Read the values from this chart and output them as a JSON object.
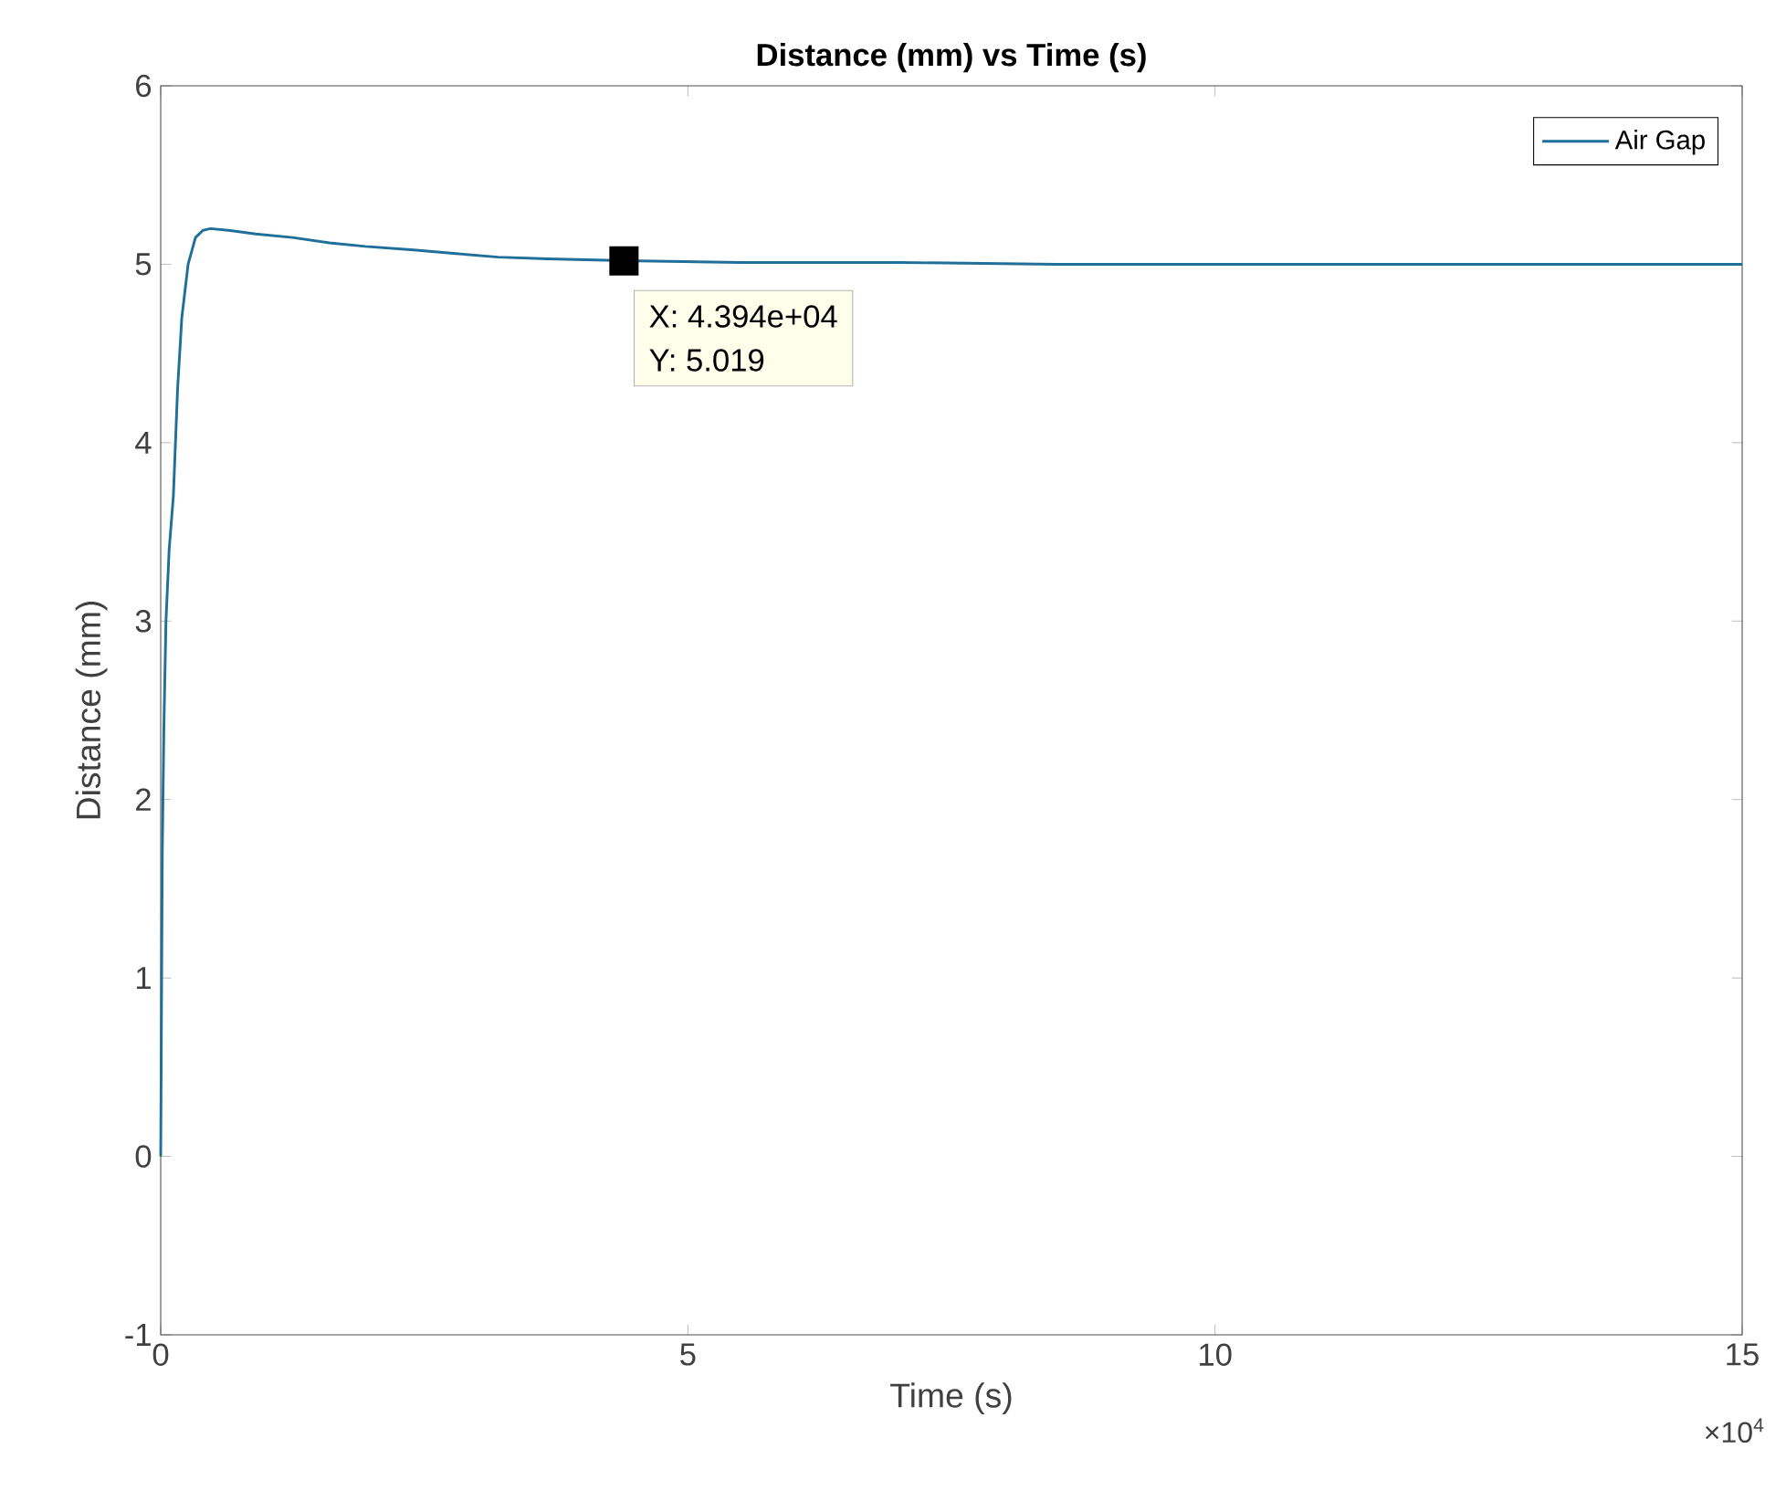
{
  "chart_data": {
    "type": "line",
    "title": "Distance (mm) vs Time (s)",
    "xlabel": "Time (s)",
    "ylabel": "Distance (mm)",
    "x": [
      0,
      0.015,
      0.03,
      0.05,
      0.08,
      0.12,
      0.16,
      0.2,
      0.26,
      0.33,
      0.4,
      0.47,
      0.64,
      0.9,
      1.25,
      1.6,
      1.94,
      2.4,
      2.8,
      3.2,
      3.67,
      4.4,
      5.5,
      7,
      8.5,
      10,
      12,
      13.5,
      15
    ],
    "series": [
      {
        "name": "Air Gap",
        "color": "#1f6f9a",
        "values": [
          0,
          1.7,
          2.4,
          3.0,
          3.4,
          3.7,
          4.3,
          4.7,
          5.0,
          5.15,
          5.19,
          5.2,
          5.19,
          5.17,
          5.15,
          5.12,
          5.1,
          5.08,
          5.06,
          5.04,
          5.03,
          5.02,
          5.01,
          5.01,
          5.0,
          5.0,
          5.0,
          5.0,
          5.0
        ]
      }
    ],
    "xlim": [
      0,
      15
    ],
    "ylim": [
      -1,
      6
    ],
    "xticks": [
      0,
      5,
      10,
      15
    ],
    "yticks": [
      -1,
      0,
      1,
      2,
      3,
      4,
      5,
      6
    ],
    "legend": "top right",
    "grid": false,
    "annotations": [
      {
        "text": "X: 4.394e+04",
        "x": 4.394,
        "y": 5.019
      },
      {
        "text": "Y: 5.019",
        "x": 4.394,
        "y": 5.019
      },
      "×10$^{4}$"
    ]
  }
}
